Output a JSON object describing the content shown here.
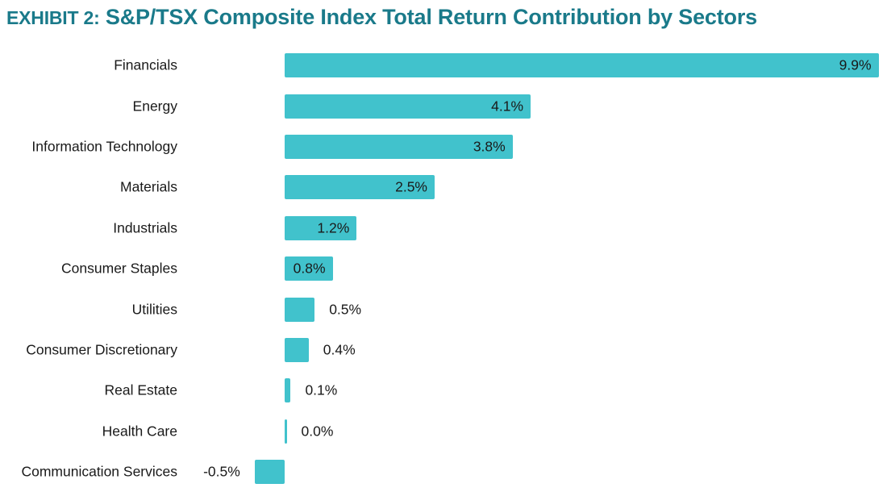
{
  "title": {
    "prefix": "EXHIBIT 2:",
    "main": " S&P/TSX Composite Index Total Return Contribution by Sectors"
  },
  "colors": {
    "bar_fill": "#41C2CC",
    "title_text": "#1A7A8A",
    "label_text": "#1A1A1A",
    "background": "#FFFFFF"
  },
  "chart_data": {
    "type": "bar",
    "orientation": "horizontal",
    "title": "EXHIBIT 2: S&P/TSX Composite Index Total Return Contribution by Sectors",
    "xlabel": "",
    "ylabel": "",
    "grid": false,
    "legend": false,
    "xlim": [
      -0.6,
      10.0
    ],
    "unit": "%",
    "categories": [
      "Financials",
      "Energy",
      "Information Technology",
      "Materials",
      "Industrials",
      "Consumer Staples",
      "Utilities",
      "Consumer Discretionary",
      "Real Estate",
      "Health Care",
      "Communication Services"
    ],
    "values": [
      9.9,
      4.1,
      3.8,
      2.5,
      1.2,
      0.8,
      0.5,
      0.4,
      0.1,
      0.0,
      -0.5
    ],
    "value_labels": [
      "9.9%",
      "4.1%",
      "3.8%",
      "2.5%",
      "1.2%",
      "0.8%",
      "0.5%",
      "0.4%",
      "0.1%",
      "0.0%",
      "-0.5%"
    ],
    "value_label_placement": [
      "inside",
      "inside",
      "inside",
      "inside",
      "inside",
      "inside",
      "outside-right",
      "outside-right",
      "outside-right",
      "outside-right",
      "outside-left"
    ]
  }
}
